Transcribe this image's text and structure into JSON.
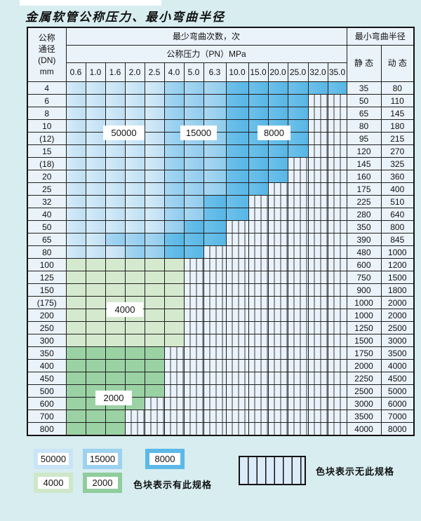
{
  "page": {
    "title": "金属软管公称压力、最小弯曲半径"
  },
  "colors": {
    "c50000": [
      "#d6ebf8",
      "#bedff3"
    ],
    "c15000": [
      "#a9d7f1",
      "#8fccee"
    ],
    "c8000": [
      "#6ec1ea",
      "#57b6e6"
    ],
    "c4000": "#d5e9cf",
    "c2000": "#9bd2a4",
    "stripe_bg": "#eaf3fb",
    "grid": "#3c3c3c",
    "swatch_borders": {
      "c50000": "#c9e4f6",
      "c15000": "#9dd1f0",
      "c8000": "#5cb9e8",
      "c4000": "#cfe7c9",
      "c2000": "#90cc9c"
    }
  },
  "table": {
    "dn_header": [
      "公称",
      "通径",
      "(DN)",
      "mm"
    ],
    "cycles_header": "最少弯曲次数，次",
    "pressure_header": "公称压力（PN）MPa",
    "radius_header": "最小弯曲半径",
    "static_header": "静 态",
    "dynamic_header": "动 态",
    "pressures": [
      "0.6",
      "1.0",
      "1.6",
      "2.0",
      "2.5",
      "4.0",
      "5.0",
      "6.3",
      "10.0",
      "15.0",
      "20.0",
      "25.0",
      "32.0",
      "35.0"
    ],
    "rows": [
      {
        "dn": "4",
        "static": "35",
        "dynamic": "80",
        "bands": [
          [
            "c50000",
            1,
            5
          ],
          [
            "c15000",
            6,
            8
          ],
          [
            "c8000",
            9,
            14
          ]
        ]
      },
      {
        "dn": "6",
        "static": "50",
        "dynamic": "110",
        "bands": [
          [
            "c50000",
            1,
            5
          ],
          [
            "c15000",
            6,
            8
          ],
          [
            "c8000",
            9,
            12
          ]
        ]
      },
      {
        "dn": "8",
        "static": "65",
        "dynamic": "145",
        "bands": [
          [
            "c50000",
            1,
            5
          ],
          [
            "c15000",
            6,
            8
          ],
          [
            "c8000",
            9,
            12
          ]
        ]
      },
      {
        "dn": "10",
        "static": "80",
        "dynamic": "180",
        "bands": [
          [
            "c50000",
            1,
            5
          ],
          [
            "c15000",
            6,
            8
          ],
          [
            "c8000",
            9,
            12
          ]
        ]
      },
      {
        "dn": "(12)",
        "static": "95",
        "dynamic": "215",
        "bands": [
          [
            "c50000",
            1,
            5
          ],
          [
            "c15000",
            6,
            8
          ],
          [
            "c8000",
            9,
            12
          ]
        ]
      },
      {
        "dn": "15",
        "static": "120",
        "dynamic": "270",
        "bands": [
          [
            "c50000",
            1,
            5
          ],
          [
            "c15000",
            6,
            8
          ],
          [
            "c8000",
            9,
            12
          ]
        ]
      },
      {
        "dn": "(18)",
        "static": "145",
        "dynamic": "325",
        "bands": [
          [
            "c50000",
            1,
            5
          ],
          [
            "c15000",
            6,
            8
          ],
          [
            "c8000",
            9,
            11
          ]
        ]
      },
      {
        "dn": "20",
        "static": "160",
        "dynamic": "360",
        "bands": [
          [
            "c50000",
            1,
            5
          ],
          [
            "c15000",
            6,
            8
          ],
          [
            "c8000",
            9,
            11
          ]
        ]
      },
      {
        "dn": "25",
        "static": "175",
        "dynamic": "400",
        "bands": [
          [
            "c50000",
            1,
            5
          ],
          [
            "c15000",
            6,
            8
          ],
          [
            "c8000",
            9,
            10
          ]
        ]
      },
      {
        "dn": "32",
        "static": "225",
        "dynamic": "510",
        "bands": [
          [
            "c50000",
            1,
            5
          ],
          [
            "c15000",
            6,
            7
          ],
          [
            "c8000",
            8,
            9
          ]
        ]
      },
      {
        "dn": "40",
        "static": "280",
        "dynamic": "640",
        "bands": [
          [
            "c50000",
            1,
            5
          ],
          [
            "c15000",
            6,
            7
          ],
          [
            "c8000",
            8,
            9
          ]
        ]
      },
      {
        "dn": "50",
        "static": "350",
        "dynamic": "800",
        "bands": [
          [
            "c50000",
            1,
            5
          ],
          [
            "c15000",
            6,
            6
          ],
          [
            "c8000",
            7,
            8
          ]
        ]
      },
      {
        "dn": "65",
        "static": "390",
        "dynamic": "845",
        "bands": [
          [
            "c50000",
            1,
            2
          ],
          [
            "c15000",
            3,
            5
          ],
          [
            "c8000",
            6,
            8
          ]
        ]
      },
      {
        "dn": "80",
        "static": "480",
        "dynamic": "1000",
        "bands": [
          [
            "c50000",
            1,
            3
          ],
          [
            "c15000",
            4,
            5
          ],
          [
            "c8000",
            6,
            7
          ]
        ]
      },
      {
        "dn": "100",
        "static": "600",
        "dynamic": "1200",
        "bands": [
          [
            "c4000",
            1,
            6
          ]
        ]
      },
      {
        "dn": "125",
        "static": "750",
        "dynamic": "1500",
        "bands": [
          [
            "c4000",
            1,
            6
          ]
        ]
      },
      {
        "dn": "150",
        "static": "900",
        "dynamic": "1800",
        "bands": [
          [
            "c4000",
            1,
            6
          ]
        ]
      },
      {
        "dn": "(175)",
        "static": "1000",
        "dynamic": "2000",
        "bands": [
          [
            "c4000",
            1,
            6
          ]
        ]
      },
      {
        "dn": "200",
        "static": "1000",
        "dynamic": "2000",
        "bands": [
          [
            "c4000",
            1,
            6
          ]
        ]
      },
      {
        "dn": "250",
        "static": "1250",
        "dynamic": "2500",
        "bands": [
          [
            "c4000",
            1,
            6
          ]
        ]
      },
      {
        "dn": "300",
        "static": "1500",
        "dynamic": "3000",
        "bands": [
          [
            "c4000",
            1,
            6
          ]
        ]
      },
      {
        "dn": "350",
        "static": "1750",
        "dynamic": "3500",
        "bands": [
          [
            "c2000",
            1,
            5
          ]
        ]
      },
      {
        "dn": "400",
        "static": "2000",
        "dynamic": "4000",
        "bands": [
          [
            "c2000",
            1,
            5
          ]
        ]
      },
      {
        "dn": "450",
        "static": "2250",
        "dynamic": "4500",
        "bands": [
          [
            "c2000",
            1,
            5
          ]
        ]
      },
      {
        "dn": "500",
        "static": "2500",
        "dynamic": "5000",
        "bands": [
          [
            "c2000",
            1,
            5
          ]
        ]
      },
      {
        "dn": "600",
        "static": "3000",
        "dynamic": "6000",
        "bands": [
          [
            "c2000",
            1,
            4
          ]
        ]
      },
      {
        "dn": "700",
        "static": "3500",
        "dynamic": "7000",
        "bands": [
          [
            "c2000",
            1,
            3
          ]
        ]
      },
      {
        "dn": "800",
        "static": "4000",
        "dynamic": "8000",
        "bands": [
          [
            "c2000",
            1,
            3
          ]
        ]
      }
    ]
  },
  "overlay_labels": [
    {
      "key": "l50000",
      "text": "50000"
    },
    {
      "key": "l15000",
      "text": "15000"
    },
    {
      "key": "l8000",
      "text": "8000"
    },
    {
      "key": "l4000",
      "text": "4000"
    },
    {
      "key": "l2000",
      "text": "2000"
    }
  ],
  "legend": {
    "row1": [
      {
        "text": "50000",
        "color": "c50000"
      },
      {
        "text": "15000",
        "color": "c15000"
      },
      {
        "text": "8000",
        "color": "c8000"
      }
    ],
    "row2": [
      {
        "text": "4000",
        "color": "c4000"
      },
      {
        "text": "2000",
        "color": "c2000"
      }
    ],
    "has_spec_text": "色块表示有此规格",
    "no_spec_text": "色块表示无此规格"
  }
}
